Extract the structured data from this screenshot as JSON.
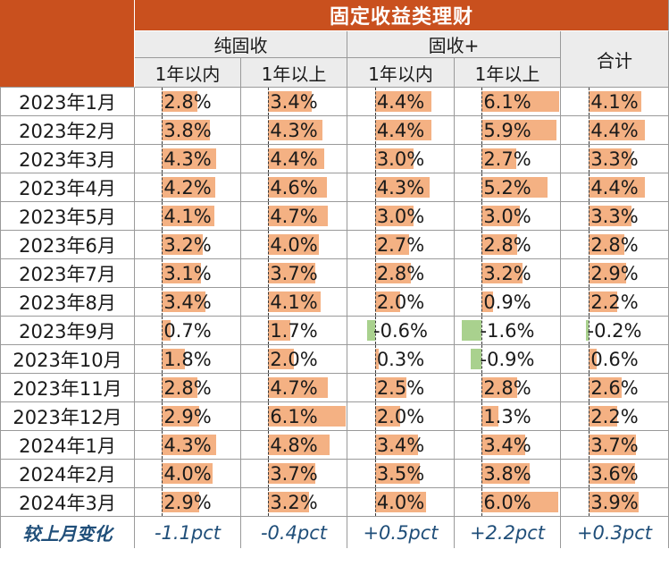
{
  "header": {
    "title": "固定收益类理财",
    "group_pure": "纯固收",
    "group_plus": "固收+",
    "total": "合计",
    "sub_within": "1年以内",
    "sub_over": "1年以上"
  },
  "colors": {
    "header_bg": "#c9501e",
    "positive_bar": "#f4b183",
    "negative_bar": "#a9d18e",
    "footer_text": "#1f4e79"
  },
  "axis_range": {
    "min": -2.0,
    "max": 6.1
  },
  "rows": [
    {
      "label": "2023年1月",
      "values": [
        "2.8%",
        "3.4%",
        "4.4%",
        "6.1%",
        "4.1%"
      ],
      "nums": [
        2.8,
        3.4,
        4.4,
        6.1,
        4.1
      ]
    },
    {
      "label": "2023年2月",
      "values": [
        "3.8%",
        "4.3%",
        "4.4%",
        "5.9%",
        "4.4%"
      ],
      "nums": [
        3.8,
        4.3,
        4.4,
        5.9,
        4.4
      ]
    },
    {
      "label": "2023年3月",
      "values": [
        "4.3%",
        "4.4%",
        "3.0%",
        "2.7%",
        "3.3%"
      ],
      "nums": [
        4.3,
        4.4,
        3.0,
        2.7,
        3.3
      ]
    },
    {
      "label": "2023年4月",
      "values": [
        "4.2%",
        "4.6%",
        "4.3%",
        "5.2%",
        "4.4%"
      ],
      "nums": [
        4.2,
        4.6,
        4.3,
        5.2,
        4.4
      ]
    },
    {
      "label": "2023年5月",
      "values": [
        "4.1%",
        "4.7%",
        "3.0%",
        "3.0%",
        "3.3%"
      ],
      "nums": [
        4.1,
        4.7,
        3.0,
        3.0,
        3.3
      ]
    },
    {
      "label": "2023年6月",
      "values": [
        "3.2%",
        "4.0%",
        "2.7%",
        "2.8%",
        "2.8%"
      ],
      "nums": [
        3.2,
        4.0,
        2.7,
        2.8,
        2.8
      ]
    },
    {
      "label": "2023年7月",
      "values": [
        "3.1%",
        "3.7%",
        "2.8%",
        "3.2%",
        "2.9%"
      ],
      "nums": [
        3.1,
        3.7,
        2.8,
        3.2,
        2.9
      ]
    },
    {
      "label": "2023年8月",
      "values": [
        "3.4%",
        "4.1%",
        "2.0%",
        "0.9%",
        "2.2%"
      ],
      "nums": [
        3.4,
        4.1,
        2.0,
        0.9,
        2.2
      ]
    },
    {
      "label": "2023年9月",
      "values": [
        "0.7%",
        "1.7%",
        "-0.6%",
        "-1.6%",
        "-0.2%"
      ],
      "nums": [
        0.7,
        1.7,
        -0.6,
        -1.6,
        -0.2
      ]
    },
    {
      "label": "2023年10月",
      "values": [
        "1.8%",
        "2.0%",
        "0.3%",
        "-0.9%",
        "0.6%"
      ],
      "nums": [
        1.8,
        2.0,
        0.3,
        -0.9,
        0.6
      ]
    },
    {
      "label": "2023年11月",
      "values": [
        "2.8%",
        "4.7%",
        "2.5%",
        "2.8%",
        "2.6%"
      ],
      "nums": [
        2.8,
        4.7,
        2.5,
        2.8,
        2.6
      ]
    },
    {
      "label": "2023年12月",
      "values": [
        "2.9%",
        "6.1%",
        "2.0%",
        "1.3%",
        "2.2%"
      ],
      "nums": [
        2.9,
        6.1,
        2.0,
        1.3,
        2.2
      ]
    },
    {
      "label": "2024年1月",
      "values": [
        "4.3%",
        "4.8%",
        "3.4%",
        "3.4%",
        "3.7%"
      ],
      "nums": [
        4.3,
        4.8,
        3.4,
        3.4,
        3.7
      ]
    },
    {
      "label": "2024年2月",
      "values": [
        "4.0%",
        "3.7%",
        "3.5%",
        "3.8%",
        "3.6%"
      ],
      "nums": [
        4.0,
        3.7,
        3.5,
        3.8,
        3.6
      ]
    },
    {
      "label": "2024年3月",
      "values": [
        "2.9%",
        "3.2%",
        "4.0%",
        "6.0%",
        "3.9%"
      ],
      "nums": [
        2.9,
        3.2,
        4.0,
        6.0,
        3.9
      ]
    }
  ],
  "footer": {
    "label": "较上月变化",
    "values": [
      "-1.1pct",
      "-0.4pct",
      "+0.5pct",
      "+2.2pct",
      "+0.3pct"
    ]
  }
}
